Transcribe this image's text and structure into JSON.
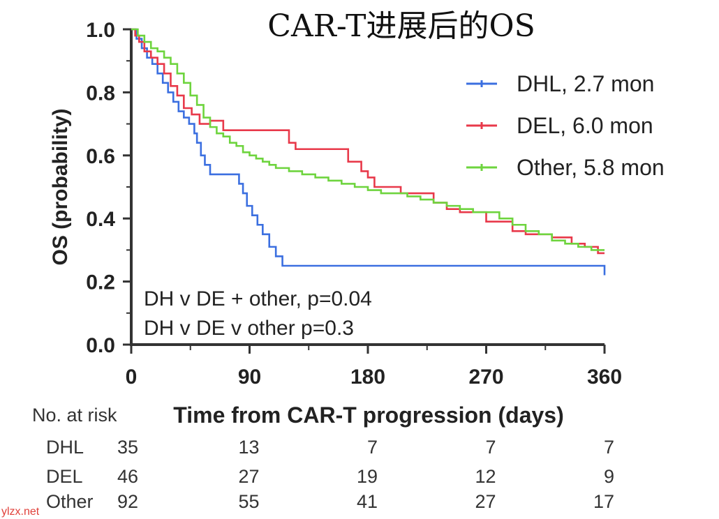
{
  "chart_data": {
    "type": "line",
    "subtype": "kaplan-meier",
    "title": "CAR-T进展后的OS",
    "xlabel": "Time from CAR-T progression (days)",
    "ylabel": "OS (probability)",
    "xlim": [
      0,
      360
    ],
    "ylim": [
      0,
      1
    ],
    "xticks": [
      0,
      90,
      180,
      270,
      360
    ],
    "yticks": [
      0.0,
      0.2,
      0.4,
      0.6,
      0.8,
      1.0
    ],
    "xtick_labels": [
      "0",
      "90",
      "180",
      "270",
      "360"
    ],
    "ytick_labels": [
      "0.0",
      "0.2",
      "0.4",
      "0.6",
      "0.8",
      "1.0"
    ],
    "grid": false,
    "legend_position": "top-right",
    "series": [
      {
        "name": "DHL, 2.7 mon",
        "color": "#3b6fe0",
        "x": [
          0,
          4,
          8,
          12,
          16,
          20,
          24,
          28,
          32,
          36,
          40,
          44,
          48,
          50,
          53,
          56,
          60,
          82,
          85,
          88,
          92,
          96,
          100,
          105,
          110,
          115,
          360
        ],
        "y": [
          1.0,
          0.97,
          0.94,
          0.91,
          0.89,
          0.86,
          0.83,
          0.8,
          0.77,
          0.74,
          0.72,
          0.7,
          0.67,
          0.64,
          0.6,
          0.57,
          0.54,
          0.51,
          0.48,
          0.44,
          0.41,
          0.38,
          0.35,
          0.31,
          0.28,
          0.25,
          0.22
        ]
      },
      {
        "name": "DEL, 6.0 mon",
        "color": "#e8394a",
        "x": [
          0,
          3,
          6,
          10,
          15,
          20,
          25,
          30,
          35,
          40,
          46,
          52,
          60,
          70,
          120,
          125,
          165,
          175,
          180,
          185,
          205,
          230,
          240,
          250,
          270,
          270,
          290,
          300,
          320,
          335,
          345,
          355,
          360
        ],
        "y": [
          1.0,
          0.98,
          0.96,
          0.93,
          0.91,
          0.89,
          0.86,
          0.82,
          0.79,
          0.75,
          0.73,
          0.7,
          0.71,
          0.68,
          0.64,
          0.62,
          0.58,
          0.55,
          0.53,
          0.5,
          0.48,
          0.45,
          0.43,
          0.42,
          0.41,
          0.39,
          0.36,
          0.35,
          0.34,
          0.32,
          0.31,
          0.29,
          0.29
        ]
      },
      {
        "name": "Other, 5.8 mon",
        "color": "#6ed43e",
        "x": [
          0,
          5,
          10,
          15,
          20,
          25,
          30,
          35,
          40,
          45,
          50,
          55,
          60,
          65,
          70,
          75,
          80,
          85,
          90,
          95,
          100,
          105,
          110,
          120,
          130,
          140,
          150,
          160,
          170,
          180,
          190,
          200,
          210,
          220,
          230,
          240,
          250,
          260,
          270,
          280,
          290,
          300,
          310,
          320,
          330,
          340,
          350,
          360
        ],
        "y": [
          1.0,
          0.98,
          0.96,
          0.94,
          0.93,
          0.91,
          0.89,
          0.86,
          0.83,
          0.79,
          0.76,
          0.72,
          0.69,
          0.67,
          0.66,
          0.64,
          0.63,
          0.61,
          0.6,
          0.59,
          0.58,
          0.57,
          0.56,
          0.55,
          0.54,
          0.53,
          0.52,
          0.51,
          0.5,
          0.49,
          0.48,
          0.48,
          0.47,
          0.46,
          0.45,
          0.44,
          0.43,
          0.42,
          0.42,
          0.4,
          0.38,
          0.36,
          0.35,
          0.33,
          0.32,
          0.31,
          0.3,
          0.3
        ]
      }
    ],
    "annotations": [
      "DH v DE + other, p=0.04",
      "DH v DE v other p=0.3"
    ],
    "risk_table": {
      "label": "No. at risk",
      "times": [
        0,
        90,
        180,
        270,
        360
      ],
      "rows": [
        {
          "name": "DHL",
          "values": [
            "35",
            "13",
            "7",
            "7",
            "7"
          ]
        },
        {
          "name": "DEL",
          "values": [
            "46",
            "27",
            "19",
            "12",
            "9"
          ]
        },
        {
          "name": "Other",
          "values": [
            "92",
            "55",
            "41",
            "27",
            "17"
          ]
        }
      ]
    }
  },
  "watermark": "ylzx.net"
}
